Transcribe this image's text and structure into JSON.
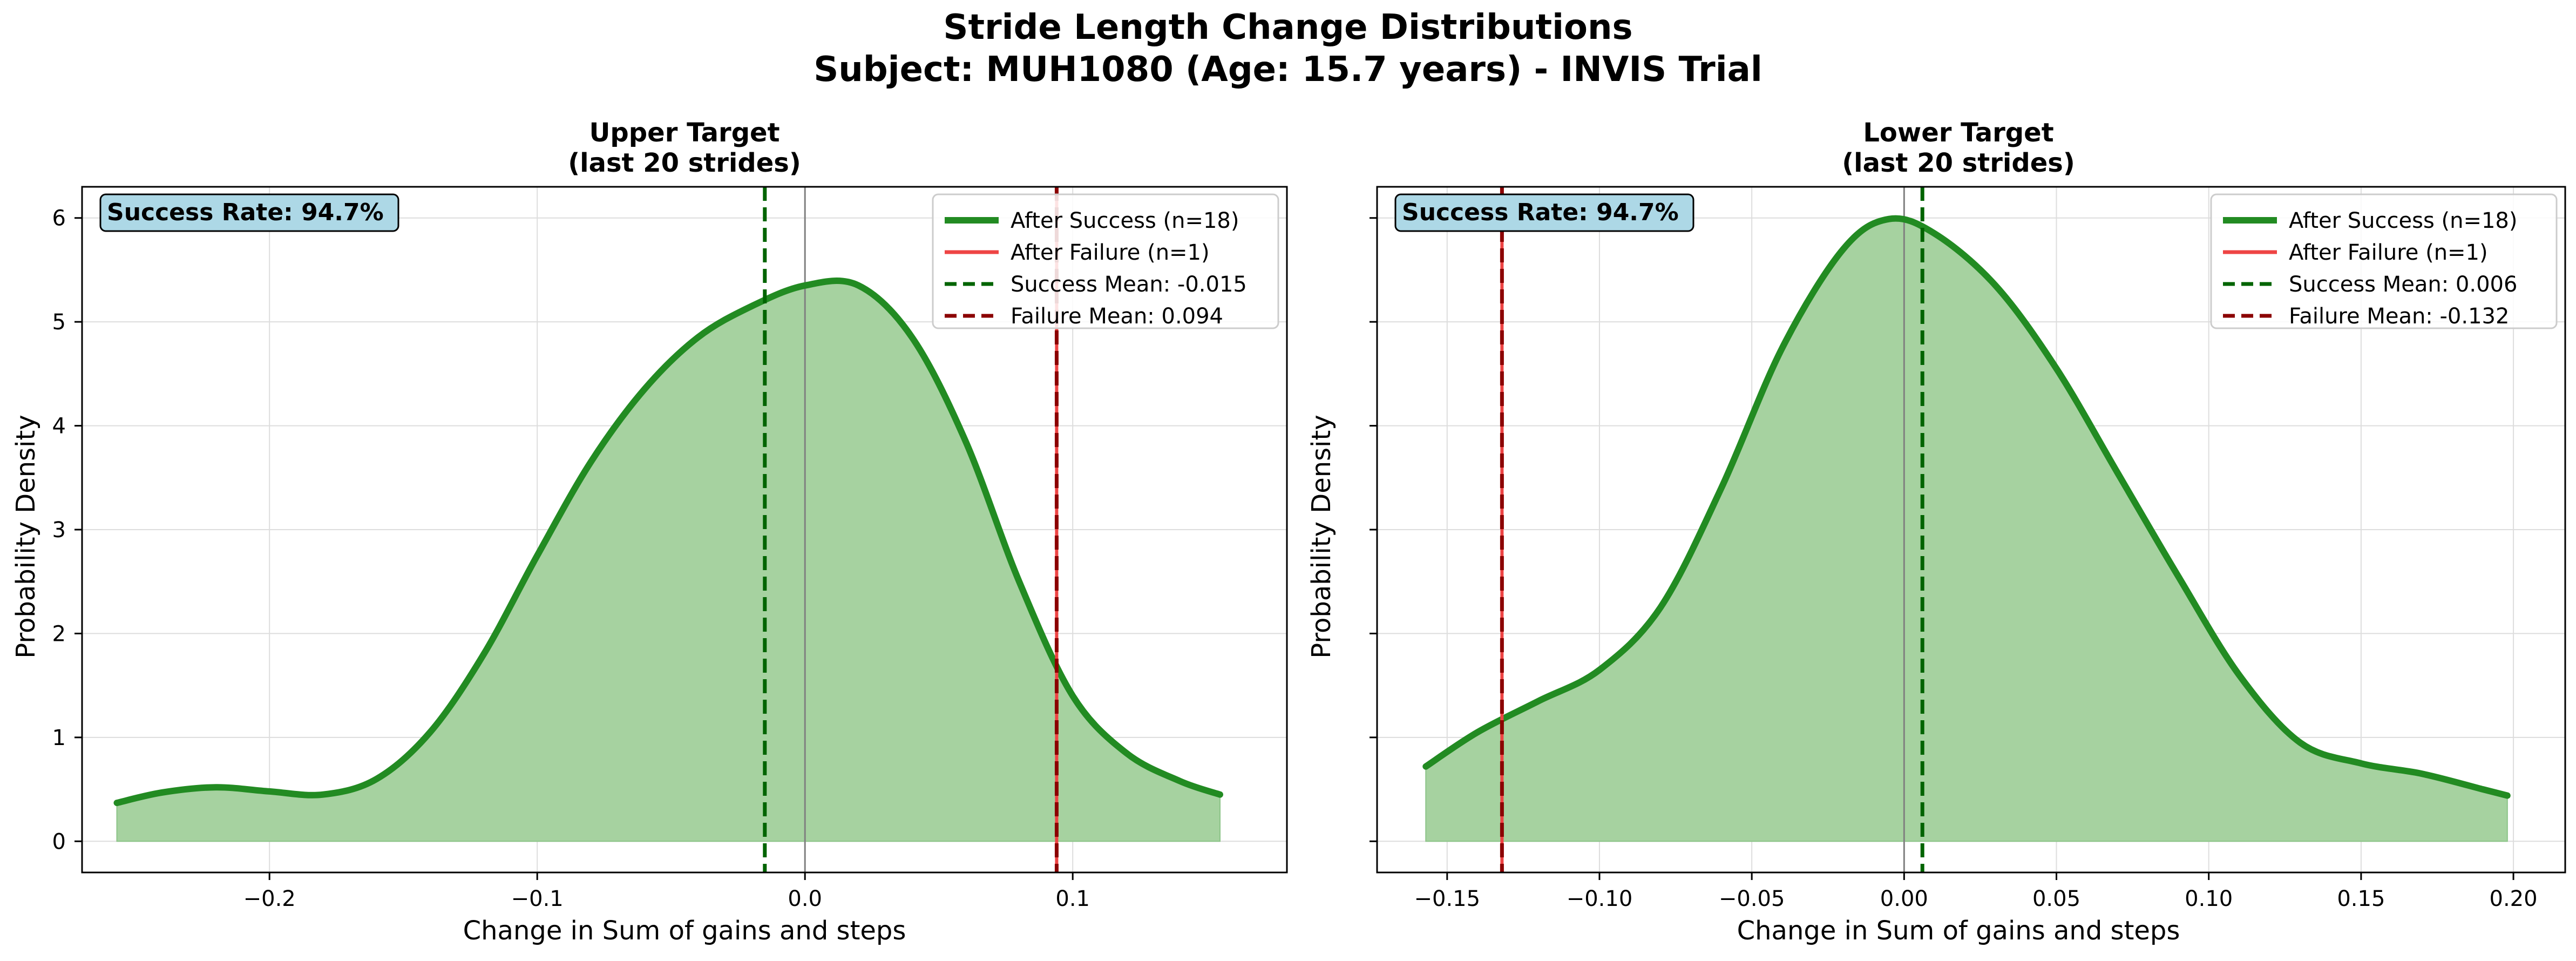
{
  "figure": {
    "suptitle_line1": "Stride Length Change Distributions",
    "suptitle_line2": "Subject: MUH1080 (Age: 15.7 years) - INVIS Trial"
  },
  "colors": {
    "success_line": "#228b22",
    "success_fill": "#a6d2a0",
    "failure_line": "#ee4444",
    "success_mean": "#006400",
    "failure_mean": "#8b0000",
    "badge_bg": "#add8e6",
    "grid": "#dddddd",
    "zero_line": "#808080"
  },
  "chart_data": [
    {
      "type": "area",
      "title_line1": "Upper Target",
      "title_line2": "(last 20 strides)",
      "xlabel": "Change in Sum of gains and steps",
      "ylabel": "Probability Density",
      "xlim": [
        -0.27,
        0.18
      ],
      "ylim": [
        -0.3,
        6.3
      ],
      "xticks": [
        -0.2,
        -0.1,
        0.0,
        0.1
      ],
      "xtick_labels": [
        "−0.2",
        "−0.1",
        "0.0",
        "0.1"
      ],
      "yticks": [
        0,
        1,
        2,
        3,
        4,
        5,
        6
      ],
      "ytick_labels": [
        "0",
        "1",
        "2",
        "3",
        "4",
        "5",
        "6"
      ],
      "grid": true,
      "legend_position": "top-right",
      "success_rate_text": "Success Rate: 94.7%",
      "legend": [
        "After Success (n=18)",
        "After Failure (n=1)",
        "Success Mean: -0.015",
        "Failure Mean: 0.094"
      ],
      "success_mean": -0.015,
      "failure_mean": 0.094,
      "kde_after_success": {
        "x": [
          -0.257,
          -0.24,
          -0.22,
          -0.2,
          -0.18,
          -0.16,
          -0.14,
          -0.12,
          -0.1,
          -0.08,
          -0.06,
          -0.04,
          -0.02,
          0.0,
          0.02,
          0.04,
          0.06,
          0.08,
          0.1,
          0.12,
          0.14,
          0.155
        ],
        "y": [
          0.37,
          0.47,
          0.52,
          0.48,
          0.45,
          0.6,
          1.05,
          1.8,
          2.75,
          3.65,
          4.35,
          4.85,
          5.15,
          5.35,
          5.35,
          4.85,
          3.85,
          2.5,
          1.4,
          0.85,
          0.58,
          0.45
        ]
      },
      "after_failure": {
        "x": [],
        "y": []
      }
    },
    {
      "type": "area",
      "title_line1": "Lower Target",
      "title_line2": "(last 20 strides)",
      "xlabel": "Change in Sum of gains and steps",
      "ylabel": "Probability Density",
      "xlim": [
        -0.173,
        0.217
      ],
      "ylim": [
        -0.3,
        6.3
      ],
      "xticks": [
        -0.15,
        -0.1,
        -0.05,
        0.0,
        0.05,
        0.1,
        0.15,
        0.2
      ],
      "xtick_labels": [
        "−0.15",
        "−0.10",
        "−0.05",
        "0.00",
        "0.05",
        "0.10",
        "0.15",
        "0.20"
      ],
      "yticks": [
        0,
        1,
        2,
        3,
        4,
        5,
        6
      ],
      "ytick_labels": [
        "0",
        "1",
        "2",
        "3",
        "4",
        "5",
        "6"
      ],
      "grid": true,
      "legend_position": "top-right",
      "success_rate_text": "Success Rate: 94.7%",
      "legend": [
        "After Success (n=18)",
        "After Failure (n=1)",
        "Success Mean: 0.006",
        "Failure Mean: -0.132"
      ],
      "success_mean": 0.006,
      "failure_mean": -0.132,
      "kde_after_success": {
        "x": [
          -0.157,
          -0.14,
          -0.12,
          -0.1,
          -0.08,
          -0.06,
          -0.04,
          -0.02,
          -0.005,
          0.01,
          0.03,
          0.05,
          0.07,
          0.09,
          0.11,
          0.13,
          0.15,
          0.17,
          0.19,
          0.198
        ],
        "y": [
          0.72,
          1.05,
          1.35,
          1.65,
          2.25,
          3.4,
          4.75,
          5.7,
          5.99,
          5.85,
          5.35,
          4.55,
          3.55,
          2.55,
          1.6,
          0.95,
          0.75,
          0.65,
          0.5,
          0.44
        ]
      },
      "after_failure": {
        "x": [],
        "y": []
      }
    }
  ]
}
